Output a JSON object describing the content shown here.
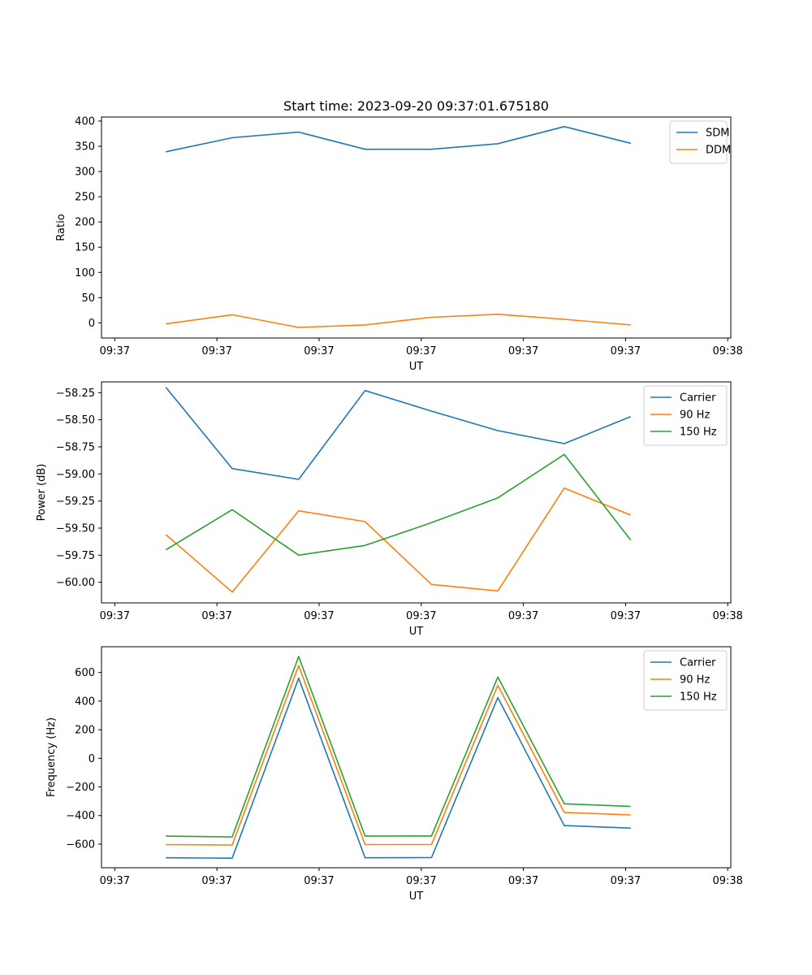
{
  "chart_data": [
    {
      "type": "line",
      "title": "Start time: 2023-09-20 09:37:01.675180",
      "xlabel": "UT",
      "ylabel": "Ratio",
      "x_tick_labels": [
        "09:37",
        "09:37",
        "09:37",
        "09:37",
        "09:37",
        "09:37",
        "09:38"
      ],
      "x_tick_values": [
        0,
        1,
        2,
        3,
        4,
        5,
        6
      ],
      "xlim": [
        -0.13,
        6.03
      ],
      "x": [
        0.5,
        1.15,
        1.8,
        2.45,
        3.1,
        3.75,
        4.4,
        5.05
      ],
      "ylim": [
        -30,
        408
      ],
      "y_ticks": [
        0,
        50,
        100,
        150,
        200,
        250,
        300,
        350,
        400
      ],
      "legend": "upper right",
      "series": [
        {
          "name": "SDM",
          "color": "#1f77b4",
          "values": [
            339,
            367,
            378,
            344,
            344,
            355,
            389,
            356
          ]
        },
        {
          "name": "DDM",
          "color": "#ff7f0e",
          "values": [
            -2,
            16,
            -9,
            -4,
            11,
            17,
            7,
            -4
          ]
        }
      ]
    },
    {
      "type": "line",
      "title": "",
      "xlabel": "UT",
      "ylabel": "Power (dB)",
      "x_tick_labels": [
        "09:37",
        "09:37",
        "09:37",
        "09:37",
        "09:37",
        "09:37",
        "09:38"
      ],
      "x_tick_values": [
        0,
        1,
        2,
        3,
        4,
        5,
        6
      ],
      "xlim": [
        -0.13,
        6.03
      ],
      "x": [
        0.5,
        1.15,
        1.8,
        2.45,
        3.1,
        3.75,
        4.4,
        5.05
      ],
      "ylim": [
        -60.19,
        -58.15
      ],
      "y_ticks": [
        -60.0,
        -59.75,
        -59.5,
        -59.25,
        -59.0,
        -58.75,
        -58.5,
        -58.25
      ],
      "legend": "upper right",
      "series": [
        {
          "name": "Carrier",
          "color": "#1f77b4",
          "values": [
            -58.2,
            -58.95,
            -59.05,
            -58.23,
            -58.42,
            -58.6,
            -58.72,
            -58.47
          ]
        },
        {
          "name": "90 Hz",
          "color": "#ff7f0e",
          "values": [
            -59.56,
            -60.09,
            -59.34,
            -59.44,
            -60.02,
            -60.08,
            -59.13,
            -59.38
          ]
        },
        {
          "name": "150 Hz",
          "color": "#2ca02c",
          "values": [
            -59.7,
            -59.33,
            -59.75,
            -59.66,
            -59.45,
            -59.22,
            -58.82,
            -59.61
          ]
        }
      ]
    },
    {
      "type": "line",
      "title": "",
      "xlabel": "UT",
      "ylabel": "Frequency (Hz)",
      "x_tick_labels": [
        "09:37",
        "09:37",
        "09:37",
        "09:37",
        "09:37",
        "09:37",
        "09:38"
      ],
      "x_tick_values": [
        0,
        1,
        2,
        3,
        4,
        5,
        6
      ],
      "xlim": [
        -0.13,
        6.03
      ],
      "x": [
        0.5,
        1.15,
        1.8,
        2.45,
        3.1,
        3.75,
        4.4,
        5.05
      ],
      "ylim": [
        -765,
        780
      ],
      "y_ticks": [
        -600,
        -400,
        -200,
        0,
        200,
        400,
        600
      ],
      "legend": "upper right",
      "series": [
        {
          "name": "Carrier",
          "color": "#1f77b4",
          "values": [
            -695,
            -698,
            560,
            -695,
            -694,
            425,
            -470,
            -488
          ]
        },
        {
          "name": "90 Hz",
          "color": "#ff7f0e",
          "values": [
            -603,
            -606,
            648,
            -603,
            -603,
            510,
            -378,
            -396
          ]
        },
        {
          "name": "150 Hz",
          "color": "#2ca02c",
          "values": [
            -544,
            -549,
            712,
            -544,
            -543,
            568,
            -318,
            -336
          ]
        }
      ]
    }
  ]
}
